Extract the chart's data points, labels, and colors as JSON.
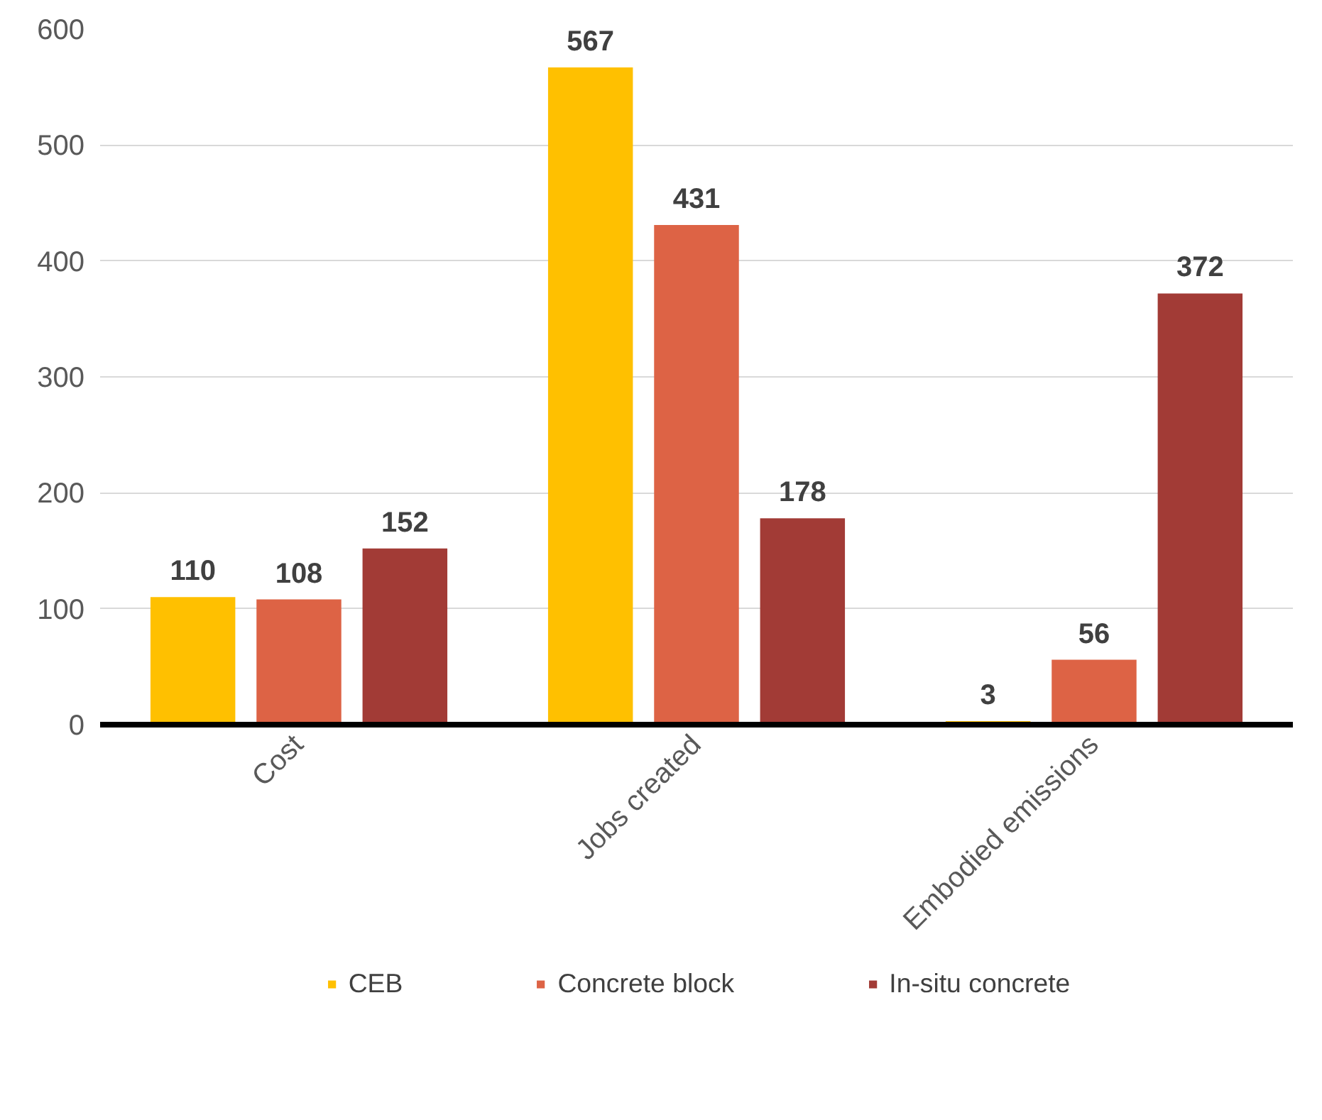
{
  "chart_data": {
    "type": "bar",
    "categories": [
      "Cost",
      "Jobs created",
      "Embodied emissions"
    ],
    "series": [
      {
        "name": "CEB",
        "color": "#ffc000",
        "values": [
          110,
          567,
          3
        ]
      },
      {
        "name": "Concrete block",
        "color": "#dd6345",
        "values": [
          108,
          431,
          56
        ]
      },
      {
        "name": "In-situ concrete",
        "color": "#a23b36",
        "values": [
          152,
          178,
          372
        ]
      }
    ],
    "ylim": [
      0,
      600
    ],
    "yticks": [
      0,
      100,
      200,
      300,
      400,
      500,
      600
    ],
    "grid": "y",
    "legend": "bottom",
    "data_labels": true
  }
}
